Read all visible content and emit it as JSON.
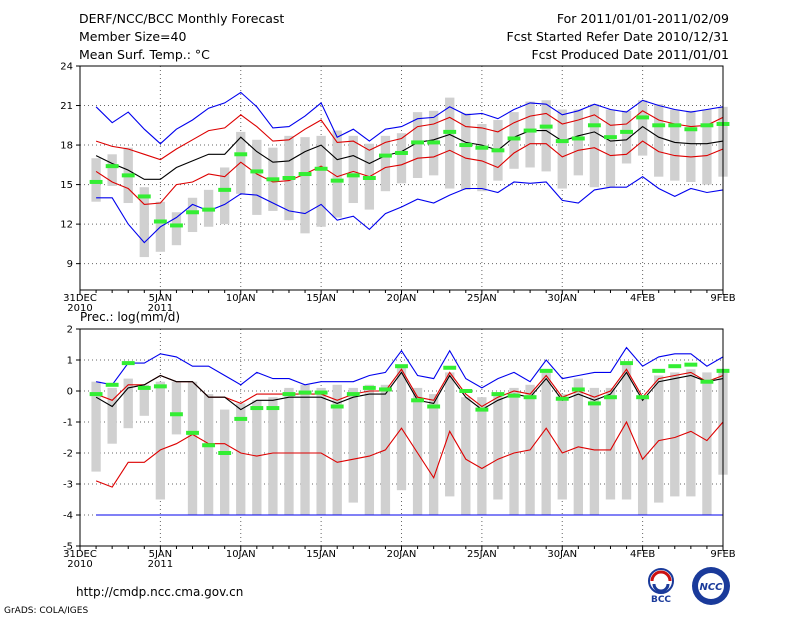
{
  "header": {
    "title": "DERF/NCC/BCC Monthly Forecast",
    "member": "Member Size=40",
    "variable": "Mean Surf. Temp.: °C",
    "period": "For 2011/01/01-2011/02/09",
    "started": "Fcst Started Refer Date 2010/12/31",
    "produced": "Fcst Produced Date 2011/01/01"
  },
  "footer": {
    "url": "http://cmdp.ncc.cma.gov.cn",
    "grads": "GrADS: COLA/IGES",
    "logo_left": "BCC",
    "logo_right": "NCC"
  },
  "colors": {
    "box": "#d0d0d0",
    "green": "#33ee33",
    "red": "#dd0000",
    "blue": "#0000ee",
    "black": "#000000",
    "grid": "#666666"
  },
  "chart_data": [
    {
      "type": "box",
      "title": "Mean Surf. Temp.: °C",
      "x_tick_labels": [
        "31DEC",
        "5JAN",
        "10JAN",
        "15JAN",
        "20JAN",
        "25JAN",
        "30JAN",
        "4FEB",
        "9FEB"
      ],
      "x_sublabels": {
        "31DEC": "2010",
        "5JAN": "2011"
      },
      "x_tick_days": [
        0,
        5,
        10,
        15,
        20,
        25,
        30,
        35,
        40
      ],
      "xlim": [
        0,
        40
      ],
      "ylim": [
        7,
        24
      ],
      "y_ticks": [
        9,
        12,
        15,
        18,
        21,
        24
      ],
      "days": [
        1,
        2,
        3,
        4,
        5,
        6,
        7,
        8,
        9,
        10,
        11,
        12,
        13,
        14,
        15,
        16,
        17,
        18,
        19,
        20,
        21,
        22,
        23,
        24,
        25,
        26,
        27,
        28,
        29,
        30,
        31,
        32,
        33,
        34,
        35,
        36,
        37,
        38,
        39,
        40
      ],
      "box_low": [
        13.7,
        14.9,
        13.6,
        9.5,
        9.9,
        10.4,
        11.4,
        11.8,
        12.0,
        14.3,
        12.7,
        13.0,
        12.3,
        11.3,
        11.8,
        12.5,
        13.6,
        13.1,
        14.5,
        15.1,
        15.5,
        15.7,
        14.7,
        14.6,
        14.5,
        15.3,
        16.2,
        16.3,
        16.0,
        14.7,
        15.7,
        14.8,
        14.8,
        16.6,
        17.2,
        15.6,
        15.3,
        15.2,
        15.0,
        15.6
      ],
      "box_high": [
        17.0,
        17.3,
        17.8,
        14.8,
        13.7,
        12.9,
        14.0,
        14.6,
        16.3,
        19.0,
        18.4,
        17.8,
        18.7,
        18.6,
        18.7,
        19.1,
        18.7,
        18.1,
        18.7,
        18.9,
        20.5,
        20.6,
        21.6,
        20.4,
        19.6,
        19.9,
        20.5,
        21.3,
        21.4,
        20.7,
        20.7,
        21.1,
        20.7,
        20.6,
        21.4,
        21.1,
        20.7,
        20.6,
        20.7,
        20.9
      ],
      "ensemble_median": [
        15.2,
        16.4,
        15.7,
        14.1,
        12.2,
        11.9,
        12.9,
        13.1,
        14.6,
        17.3,
        16.0,
        15.4,
        15.5,
        15.8,
        16.2,
        15.3,
        15.7,
        15.5,
        17.2,
        17.4,
        18.2,
        18.2,
        19.0,
        18.0,
        17.8,
        17.6,
        18.5,
        19.1,
        19.4,
        18.3,
        18.5,
        19.5,
        18.6,
        19.0,
        20.1,
        19.5,
        19.5,
        19.2,
        19.5,
        19.6
      ],
      "series": [
        {
          "name": "ensemble_max",
          "color": "blue",
          "values": [
            20.9,
            19.7,
            20.5,
            19.2,
            18.1,
            19.2,
            19.9,
            20.8,
            21.2,
            22.0,
            20.9,
            19.3,
            19.4,
            20.2,
            21.2,
            18.6,
            19.2,
            18.3,
            19.2,
            19.4,
            20.0,
            20.1,
            20.9,
            20.3,
            20.4,
            20.0,
            20.7,
            21.2,
            21.1,
            20.3,
            20.6,
            21.1,
            20.7,
            20.5,
            21.4,
            21.0,
            20.7,
            20.5,
            20.7,
            20.9
          ]
        },
        {
          "name": "mean_plus_sd",
          "color": "red",
          "values": [
            18.3,
            17.9,
            17.7,
            17.3,
            16.9,
            17.7,
            18.4,
            19.1,
            19.3,
            20.3,
            19.4,
            18.3,
            18.4,
            19.2,
            19.9,
            18.2,
            18.3,
            17.6,
            18.2,
            18.5,
            19.4,
            19.6,
            20.1,
            19.4,
            19.3,
            19.0,
            19.7,
            20.2,
            20.4,
            19.6,
            19.9,
            20.3,
            19.5,
            19.6,
            20.6,
            19.9,
            19.6,
            19.4,
            19.5,
            20.1
          ]
        },
        {
          "name": "ensemble_mean",
          "color": "black",
          "values": [
            17.2,
            16.6,
            16.1,
            15.4,
            15.4,
            16.3,
            16.8,
            17.3,
            17.3,
            18.6,
            17.5,
            16.7,
            16.8,
            17.5,
            18.0,
            16.9,
            17.2,
            16.6,
            17.2,
            17.5,
            18.2,
            18.4,
            18.8,
            18.2,
            18.0,
            17.6,
            18.6,
            19.1,
            19.1,
            18.3,
            18.7,
            19.0,
            18.3,
            18.4,
            19.4,
            18.6,
            18.2,
            18.1,
            18.1,
            18.3
          ]
        },
        {
          "name": "mean_minus_sd",
          "color": "red",
          "values": [
            16.0,
            15.2,
            14.7,
            13.5,
            13.6,
            15.0,
            15.2,
            15.8,
            15.6,
            16.7,
            15.8,
            15.2,
            15.3,
            15.8,
            16.4,
            15.6,
            16.0,
            15.6,
            16.3,
            16.5,
            17.0,
            17.1,
            17.6,
            17.0,
            16.8,
            16.3,
            17.4,
            18.1,
            18.1,
            17.1,
            17.6,
            17.8,
            17.2,
            17.3,
            18.3,
            17.5,
            17.2,
            17.1,
            17.2,
            17.7
          ]
        },
        {
          "name": "ensemble_min",
          "color": "blue",
          "values": [
            14.0,
            14.0,
            12.0,
            10.6,
            11.8,
            12.5,
            13.5,
            13.0,
            13.5,
            14.3,
            14.2,
            13.6,
            13.0,
            12.8,
            13.5,
            12.3,
            12.6,
            11.6,
            12.8,
            13.3,
            13.9,
            13.6,
            14.2,
            14.7,
            14.7,
            14.4,
            15.2,
            15.1,
            15.2,
            13.8,
            13.6,
            14.6,
            14.8,
            14.8,
            15.6,
            14.7,
            14.1,
            14.7,
            14.4,
            14.6
          ]
        }
      ]
    },
    {
      "type": "box",
      "title": "Prec.: log(mm/d)",
      "x_tick_labels": [
        "31DEC",
        "5JAN",
        "10JAN",
        "15JAN",
        "20JAN",
        "25JAN",
        "30JAN",
        "4FEB",
        "9FEB"
      ],
      "x_sublabels": {
        "31DEC": "2010",
        "5JAN": "2011"
      },
      "x_tick_days": [
        0,
        5,
        10,
        15,
        20,
        25,
        30,
        35,
        40
      ],
      "xlim": [
        0,
        40
      ],
      "ylim": [
        -5,
        2
      ],
      "y_ticks": [
        -5,
        -4,
        -3,
        -2,
        -1,
        0,
        1,
        2
      ],
      "days": [
        1,
        2,
        3,
        4,
        5,
        6,
        7,
        8,
        9,
        10,
        11,
        12,
        13,
        14,
        15,
        16,
        17,
        18,
        19,
        20,
        21,
        22,
        23,
        24,
        25,
        26,
        27,
        28,
        29,
        30,
        31,
        32,
        33,
        34,
        35,
        36,
        37,
        38,
        39,
        40
      ],
      "box_low": [
        -2.6,
        -1.7,
        -1.2,
        -0.8,
        -3.5,
        -1.4,
        -4,
        -4,
        -4,
        -4,
        -4,
        -4,
        -4,
        -4,
        -4,
        -4,
        -3.6,
        -4,
        -4,
        -3.2,
        -4,
        -4,
        -3.4,
        -4,
        -4,
        -3.5,
        -4,
        -4,
        -4,
        -3.5,
        -4,
        -4,
        -3.5,
        -3.5,
        -4,
        -3.6,
        -3.4,
        -3.4,
        -4,
        -2.7
      ],
      "box_high": [
        0.3,
        0.1,
        0.4,
        0.2,
        0.3,
        0.3,
        0.3,
        -0.1,
        -0.6,
        -0.4,
        -0.3,
        -0.2,
        0.1,
        0.2,
        0.1,
        0.2,
        0.1,
        0.2,
        0.2,
        0.8,
        0.1,
        -0.1,
        0.6,
        -0.2,
        -0.2,
        -0.1,
        0.1,
        0.2,
        0.6,
        -0.1,
        0.4,
        0.1,
        0.1,
        0.9,
        -0.2,
        0.5,
        0.6,
        0.7,
        0.6,
        0.7
      ],
      "ensemble_median": [
        -0.1,
        0.2,
        0.9,
        0.1,
        0.15,
        -0.75,
        -1.35,
        -1.75,
        -2.0,
        -0.9,
        -0.55,
        -0.55,
        -0.1,
        -0.05,
        -0.05,
        -0.5,
        -0.1,
        0.1,
        0.05,
        0.8,
        -0.3,
        -0.5,
        0.75,
        0.0,
        -0.6,
        -0.1,
        -0.15,
        -0.2,
        0.65,
        -0.25,
        0.05,
        -0.4,
        -0.2,
        0.9,
        -0.2,
        0.65,
        0.8,
        0.85,
        0.3,
        0.65
      ],
      "floor_line": -4,
      "series": [
        {
          "name": "ensemble_max",
          "color": "blue",
          "values": [
            0.3,
            0.2,
            0.9,
            0.9,
            1.2,
            1.1,
            0.8,
            0.8,
            0.5,
            0.2,
            0.6,
            0.4,
            0.4,
            0.2,
            0.3,
            0.3,
            0.3,
            0.5,
            0.6,
            1.3,
            0.5,
            0.4,
            1.3,
            0.4,
            0.1,
            0.4,
            0.6,
            0.3,
            1.0,
            0.4,
            0.5,
            0.6,
            0.6,
            1.4,
            0.8,
            1.1,
            1.2,
            1.2,
            0.8,
            1.1
          ]
        },
        {
          "name": "mean_plus_sd",
          "color": "red",
          "values": [
            -0.1,
            -0.3,
            0.2,
            0.2,
            0.5,
            0.3,
            0.3,
            -0.2,
            -0.2,
            -0.4,
            -0.1,
            -0.1,
            -0.1,
            -0.1,
            -0.1,
            -0.3,
            -0.1,
            0.0,
            0.0,
            0.7,
            -0.2,
            -0.3,
            0.6,
            -0.1,
            -0.5,
            -0.2,
            0.0,
            -0.1,
            0.5,
            -0.2,
            0.0,
            -0.2,
            0.0,
            0.7,
            -0.2,
            0.4,
            0.5,
            0.6,
            0.3,
            0.5
          ]
        },
        {
          "name": "ensemble_mean",
          "color": "black",
          "values": [
            -0.2,
            -0.5,
            0.1,
            0.2,
            0.5,
            0.3,
            0.3,
            -0.2,
            -0.2,
            -0.6,
            -0.3,
            -0.3,
            -0.2,
            -0.2,
            -0.2,
            -0.4,
            -0.2,
            -0.1,
            -0.1,
            0.6,
            -0.3,
            -0.4,
            0.5,
            -0.2,
            -0.6,
            -0.3,
            -0.1,
            -0.2,
            0.4,
            -0.3,
            -0.1,
            -0.3,
            -0.1,
            0.6,
            -0.3,
            0.3,
            0.4,
            0.5,
            0.3,
            0.4
          ]
        },
        {
          "name": "mean_minus_sd",
          "color": "red",
          "values": [
            -2.9,
            -3.1,
            -2.3,
            -2.3,
            -1.9,
            -1.7,
            -1.4,
            -1.7,
            -1.7,
            -2.0,
            -2.1,
            -2.0,
            -2.0,
            -2.0,
            -2.0,
            -2.3,
            -2.2,
            -2.1,
            -1.9,
            -1.2,
            -2.0,
            -2.8,
            -1.3,
            -2.2,
            -2.5,
            -2.2,
            -2.0,
            -1.9,
            -1.2,
            -2.0,
            -1.8,
            -1.9,
            -1.9,
            -1.0,
            -2.2,
            -1.6,
            -1.5,
            -1.3,
            -1.6,
            -1.0
          ]
        },
        {
          "name": "ensemble_min",
          "color": "blue",
          "values": [
            -4,
            -4,
            -4,
            -4,
            -4,
            -4,
            -4,
            -4,
            -4,
            -4,
            -4,
            -4,
            -4,
            -4,
            -4,
            -4,
            -4,
            -4,
            -4,
            -4,
            -4,
            -4,
            -4,
            -4,
            -4,
            -4,
            -4,
            -4,
            -4,
            -4,
            -4,
            -4,
            -4,
            -4,
            -4,
            -4,
            -4,
            -4,
            -4,
            -4
          ]
        }
      ]
    }
  ]
}
